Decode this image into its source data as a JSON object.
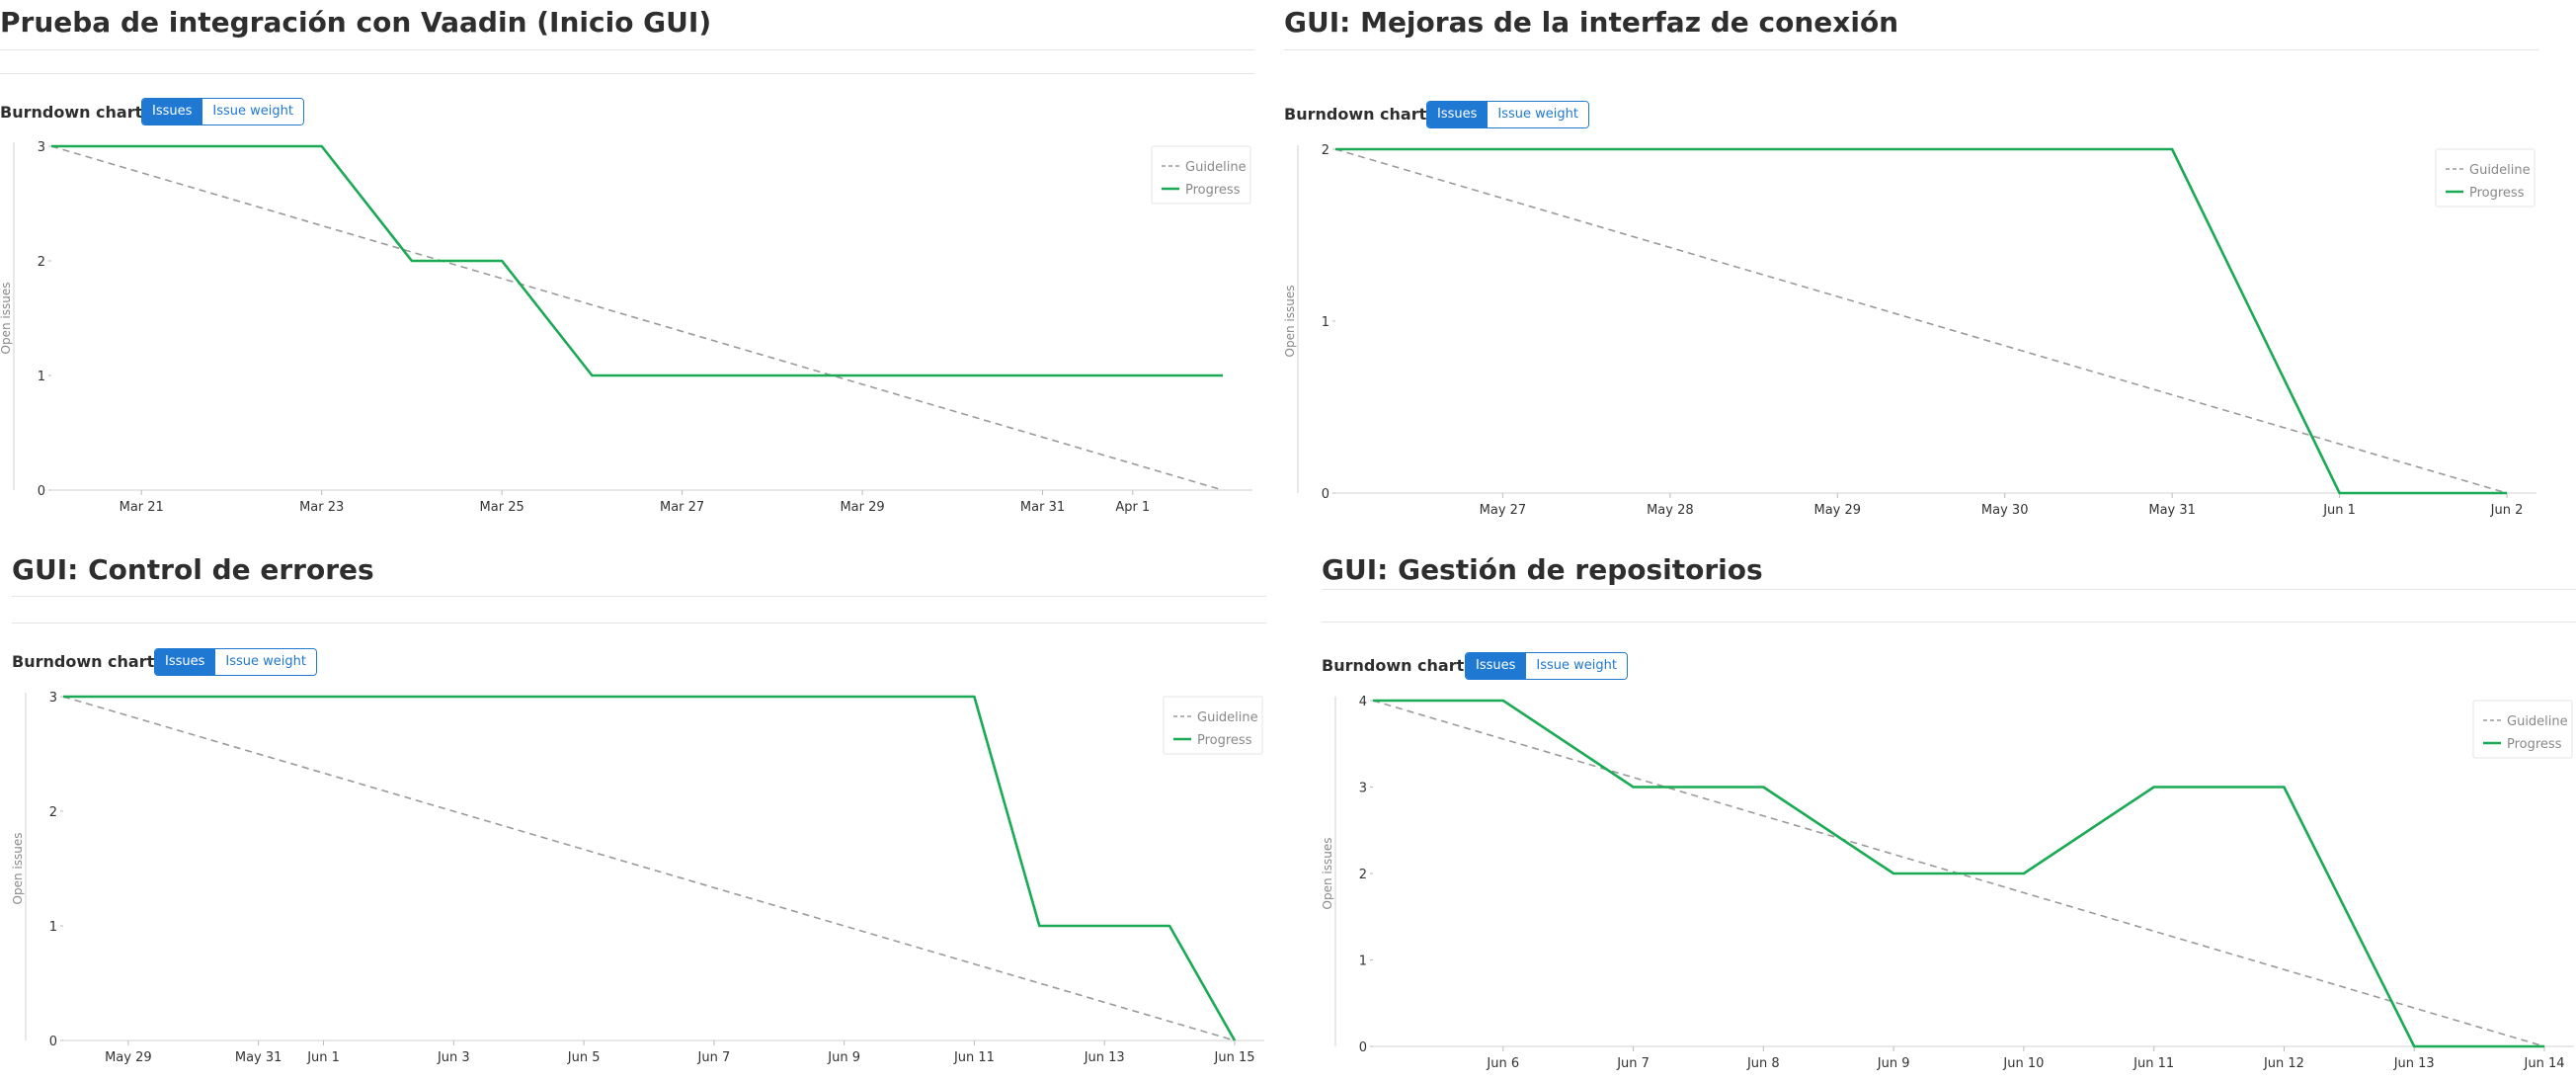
{
  "common": {
    "burndown_label": "Burndown chart",
    "toggle_issues": "Issues",
    "toggle_weight": "Issue weight",
    "legend_guideline": "Guideline",
    "legend_progress": "Progress",
    "ylabel": "Open issues",
    "colors": {
      "progress": "#1aaa55",
      "guideline": "#9a9a9a",
      "accent": "#1f78d1"
    }
  },
  "charts": [
    {
      "title": "Prueba de integración con Vaadin (Inicio GUI)",
      "chart_data": {
        "type": "line",
        "title": "Burndown chart",
        "ylabel": "Open issues",
        "xlabel": "",
        "ylim": [
          0,
          3
        ],
        "yticks": [
          0,
          1,
          2,
          3
        ],
        "xlim": [
          "Mar 20",
          "Apr 3"
        ],
        "xticks": [
          "Mar 21",
          "Mar 23",
          "Mar 25",
          "Mar 27",
          "Mar 29",
          "Mar 31",
          "Apr 1"
        ],
        "xtick_dates": [
          "2024-03-21",
          "2024-03-23",
          "2024-03-25",
          "2024-03-27",
          "2024-03-29",
          "2024-03-31",
          "2024-04-01"
        ],
        "legend": "top-right",
        "series": [
          {
            "name": "Guideline",
            "style": "dashed",
            "x": [
              "2024-03-20",
              "2024-04-02"
            ],
            "y": [
              3,
              0
            ]
          },
          {
            "name": "Progress",
            "style": "solid",
            "x": [
              "2024-03-20",
              "2024-03-23",
              "2024-03-24",
              "2024-03-25",
              "2024-03-26",
              "2024-04-02"
            ],
            "y": [
              3,
              3,
              2,
              2,
              1,
              1
            ]
          }
        ]
      }
    },
    {
      "title": "GUI: Mejoras de la interfaz de conexión",
      "chart_data": {
        "type": "line",
        "title": "Burndown chart",
        "ylabel": "Open issues",
        "xlabel": "",
        "ylim": [
          0,
          2
        ],
        "yticks": [
          0,
          1,
          2
        ],
        "xlim": [
          "May 26",
          "Jun 2"
        ],
        "xticks": [
          "May 27",
          "May 28",
          "May 29",
          "May 30",
          "May 31",
          "Jun 1",
          "Jun 2"
        ],
        "xtick_dates": [
          "2024-05-27",
          "2024-05-28",
          "2024-05-29",
          "2024-05-30",
          "2024-05-31",
          "2024-06-01",
          "2024-06-02"
        ],
        "legend": "top-right",
        "series": [
          {
            "name": "Guideline",
            "style": "dashed",
            "x": [
              "2024-05-26",
              "2024-06-02"
            ],
            "y": [
              2,
              0
            ]
          },
          {
            "name": "Progress",
            "style": "solid",
            "x": [
              "2024-05-26",
              "2024-05-31",
              "2024-06-01",
              "2024-06-02"
            ],
            "y": [
              2,
              2,
              0,
              0
            ]
          }
        ]
      }
    },
    {
      "title": "GUI: Control de errores",
      "chart_data": {
        "type": "line",
        "title": "Burndown chart",
        "ylabel": "Open issues",
        "xlabel": "",
        "ylim": [
          0,
          3
        ],
        "yticks": [
          0,
          1,
          2,
          3
        ],
        "xlim": [
          "May 28",
          "Jun 15"
        ],
        "xticks": [
          "May 29",
          "May 31",
          "Jun 1",
          "Jun 3",
          "Jun 5",
          "Jun 7",
          "Jun 9",
          "Jun 11",
          "Jun 13",
          "Jun 15"
        ],
        "xtick_dates": [
          "2024-05-29",
          "2024-05-31",
          "2024-06-01",
          "2024-06-03",
          "2024-06-05",
          "2024-06-07",
          "2024-06-09",
          "2024-06-11",
          "2024-06-13",
          "2024-06-15"
        ],
        "legend": "top-right",
        "series": [
          {
            "name": "Guideline",
            "style": "dashed",
            "x": [
              "2024-05-28",
              "2024-06-15"
            ],
            "y": [
              3,
              0
            ]
          },
          {
            "name": "Progress",
            "style": "solid",
            "x": [
              "2024-05-28",
              "2024-06-11",
              "2024-06-12",
              "2024-06-14",
              "2024-06-15"
            ],
            "y": [
              3,
              3,
              1,
              1,
              0
            ]
          }
        ]
      }
    },
    {
      "title": "GUI: Gestión de repositorios",
      "chart_data": {
        "type": "line",
        "title": "Burndown chart",
        "ylabel": "Open issues",
        "xlabel": "",
        "ylim": [
          0,
          4
        ],
        "yticks": [
          0,
          1,
          2,
          3,
          4
        ],
        "xlim": [
          "Jun 5",
          "Jun 15"
        ],
        "xticks": [
          "Jun 6",
          "Jun 7",
          "Jun 8",
          "Jun 9",
          "Jun 10",
          "Jun 11",
          "Jun 12",
          "Jun 13",
          "Jun 14"
        ],
        "xtick_dates": [
          "2024-06-06",
          "2024-06-07",
          "2024-06-08",
          "2024-06-09",
          "2024-06-10",
          "2024-06-11",
          "2024-06-12",
          "2024-06-13",
          "2024-06-14"
        ],
        "legend": "top-right",
        "series": [
          {
            "name": "Guideline",
            "style": "dashed",
            "x": [
              "2024-06-05",
              "2024-06-14"
            ],
            "y": [
              4,
              0
            ]
          },
          {
            "name": "Progress",
            "style": "solid",
            "x": [
              "2024-06-05",
              "2024-06-06",
              "2024-06-07",
              "2024-06-08",
              "2024-06-09",
              "2024-06-10",
              "2024-06-11",
              "2024-06-12",
              "2024-06-13",
              "2024-06-14"
            ],
            "y": [
              4,
              4,
              3,
              3,
              2,
              2,
              3,
              3,
              0,
              0
            ]
          }
        ]
      }
    }
  ]
}
